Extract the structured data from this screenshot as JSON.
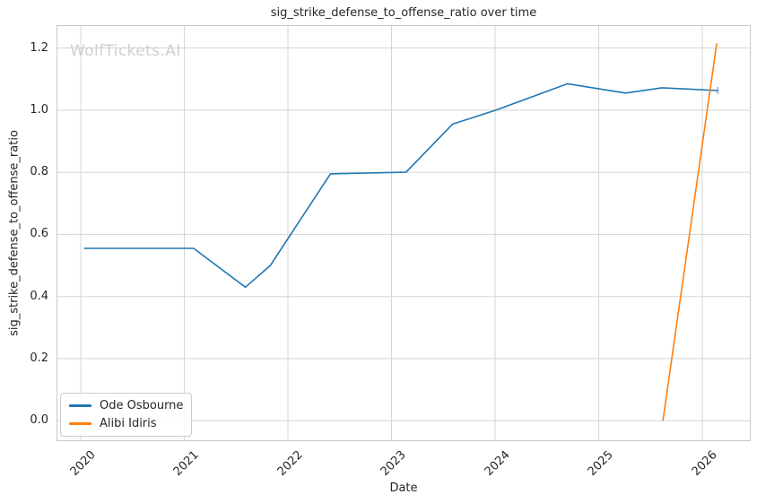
{
  "watermark": "WolfTickets.AI",
  "chart_data": {
    "type": "line",
    "title": "sig_strike_defense_to_offense_ratio over time",
    "xlabel": "Date",
    "ylabel": "sig_strike_defense_to_offense_ratio",
    "x_ticks": [
      2020,
      2021,
      2022,
      2023,
      2024,
      2025,
      2026
    ],
    "y_ticks": [
      0.0,
      0.2,
      0.4,
      0.6,
      0.8,
      1.0,
      1.2
    ],
    "xlim": [
      2019.766,
      2026.468
    ],
    "ylim": [
      -0.0655,
      1.2737
    ],
    "grid": true,
    "legend_position": "lower-left",
    "colors": {
      "grid": "#d5d5d5",
      "spine": "#c8c8c8",
      "text": "#262626",
      "watermark": "#cfcfcf",
      "background": "#ffffff"
    },
    "series": [
      {
        "name": "Ode Osbourne",
        "color": "#1f77b4",
        "end_marker": "|",
        "points": [
          [
            2020.03,
            0.555
          ],
          [
            2021.09,
            0.555
          ],
          [
            2021.59,
            0.43
          ],
          [
            2021.83,
            0.5
          ],
          [
            2022.41,
            0.795
          ],
          [
            2023.14,
            0.8
          ],
          [
            2023.59,
            0.955
          ],
          [
            2024.01,
            1.0
          ],
          [
            2024.7,
            1.085
          ],
          [
            2025.26,
            1.055
          ],
          [
            2025.61,
            1.072
          ],
          [
            2026.15,
            1.063
          ]
        ]
      },
      {
        "name": "Alibi Idiris",
        "color": "#ff7f0e",
        "points": [
          [
            2025.62,
            0.0
          ],
          [
            2026.14,
            1.215
          ]
        ]
      }
    ]
  }
}
